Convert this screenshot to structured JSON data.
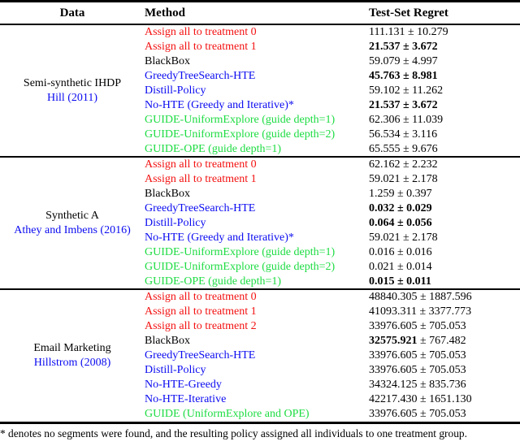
{
  "table": {
    "columns": [
      "Data",
      "Method",
      "Test-Set Regret"
    ],
    "pm_symbol": "±",
    "groups": [
      {
        "dataset": "Semi-synthetic IHDP",
        "citation": "Hill (2011)",
        "rows": [
          {
            "method": "Assign all to treatment 0",
            "color": "red",
            "regret_mean": "111.131",
            "regret_pm": "10.279",
            "bold": "none"
          },
          {
            "method": "Assign all to treatment 1",
            "color": "red",
            "regret_mean": "21.537",
            "regret_pm": "3.672",
            "bold": "all"
          },
          {
            "method": "BlackBox",
            "color": "black",
            "regret_mean": "59.079",
            "regret_pm": "4.997",
            "bold": "none"
          },
          {
            "method": "GreedyTreeSearch-HTE",
            "color": "blue",
            "regret_mean": "45.763",
            "regret_pm": "8.981",
            "bold": "all"
          },
          {
            "method": "Distill-Policy",
            "color": "blue",
            "regret_mean": "59.102",
            "regret_pm": "11.262",
            "bold": "none"
          },
          {
            "method": "No-HTE (Greedy and Iterative)*",
            "color": "blue",
            "regret_mean": "21.537",
            "regret_pm": "3.672",
            "bold": "all"
          },
          {
            "method": "GUIDE-UniformExplore (guide depth=1)",
            "color": "green",
            "regret_mean": "62.306",
            "regret_pm": "11.039",
            "bold": "none"
          },
          {
            "method": "GUIDE-UniformExplore (guide depth=2)",
            "color": "green",
            "regret_mean": "56.534",
            "regret_pm": "3.116",
            "bold": "none"
          },
          {
            "method": "GUIDE-OPE (guide depth=1)",
            "color": "green",
            "regret_mean": "65.555",
            "regret_pm": "9.676",
            "bold": "none"
          }
        ]
      },
      {
        "dataset": "Synthetic A",
        "citation": "Athey and Imbens (2016)",
        "rows": [
          {
            "method": "Assign all to treatment 0",
            "color": "red",
            "regret_mean": "62.162",
            "regret_pm": "2.232",
            "bold": "none"
          },
          {
            "method": "Assign all to treatment 1",
            "color": "red",
            "regret_mean": "59.021",
            "regret_pm": "2.178",
            "bold": "none"
          },
          {
            "method": "BlackBox",
            "color": "black",
            "regret_mean": "1.259",
            "regret_pm": "0.397",
            "bold": "none"
          },
          {
            "method": "GreedyTreeSearch-HTE",
            "color": "blue",
            "regret_mean": "0.032",
            "regret_pm": "0.029",
            "bold": "all"
          },
          {
            "method": "Distill-Policy",
            "color": "blue",
            "regret_mean": "0.064",
            "regret_pm": "0.056",
            "bold": "all"
          },
          {
            "method": "No-HTE (Greedy and Iterative)*",
            "color": "blue",
            "regret_mean": "59.021",
            "regret_pm": "2.178",
            "bold": "none"
          },
          {
            "method": "GUIDE-UniformExplore (guide depth=1)",
            "color": "green",
            "regret_mean": "0.016",
            "regret_pm": "0.016",
            "bold": "none"
          },
          {
            "method": "GUIDE-UniformExplore (guide depth=2)",
            "color": "green",
            "regret_mean": "0.021",
            "regret_pm": "0.014",
            "bold": "none"
          },
          {
            "method": "GUIDE-OPE (guide depth=1)",
            "color": "green",
            "regret_mean": "0.015",
            "regret_pm": "0.011",
            "bold": "all"
          }
        ]
      },
      {
        "dataset": "Email Marketing",
        "citation": "Hillstrom (2008)",
        "rows": [
          {
            "method": "Assign all to treatment 0",
            "color": "red",
            "regret_mean": "48840.305",
            "regret_pm": "1887.596",
            "bold": "none"
          },
          {
            "method": "Assign all to treatment 1",
            "color": "red",
            "regret_mean": "41093.311",
            "regret_pm": "3377.773",
            "bold": "none"
          },
          {
            "method": "Assign all to treatment 2",
            "color": "red",
            "regret_mean": "33976.605",
            "regret_pm": "705.053",
            "bold": "none"
          },
          {
            "method": "BlackBox",
            "color": "black",
            "regret_mean": "32575.921",
            "regret_pm": "767.482",
            "bold": "mean"
          },
          {
            "method": "GreedyTreeSearch-HTE",
            "color": "blue",
            "regret_mean": "33976.605",
            "regret_pm": "705.053",
            "bold": "none"
          },
          {
            "method": "Distill-Policy",
            "color": "blue",
            "regret_mean": "33976.605",
            "regret_pm": "705.053",
            "bold": "none"
          },
          {
            "method": "No-HTE-Greedy",
            "color": "blue",
            "regret_mean": "34324.125",
            "regret_pm": "835.736",
            "bold": "none"
          },
          {
            "method": "No-HTE-Iterative",
            "color": "blue",
            "regret_mean": "42217.430",
            "regret_pm": "1651.130",
            "bold": "none"
          },
          {
            "method": "GUIDE (UniformExplore and OPE)",
            "color": "green",
            "regret_mean": "33976.605",
            "regret_pm": "705.053",
            "bold": "none"
          }
        ]
      }
    ]
  },
  "footnote": "* denotes no segments were found, and the resulting policy assigned all individuals to one treatment group.",
  "colors": {
    "red": "#f31111",
    "blue": "#0a0af0",
    "green": "#1cdc41",
    "black": "#000000",
    "citation": "#0a0af0"
  }
}
